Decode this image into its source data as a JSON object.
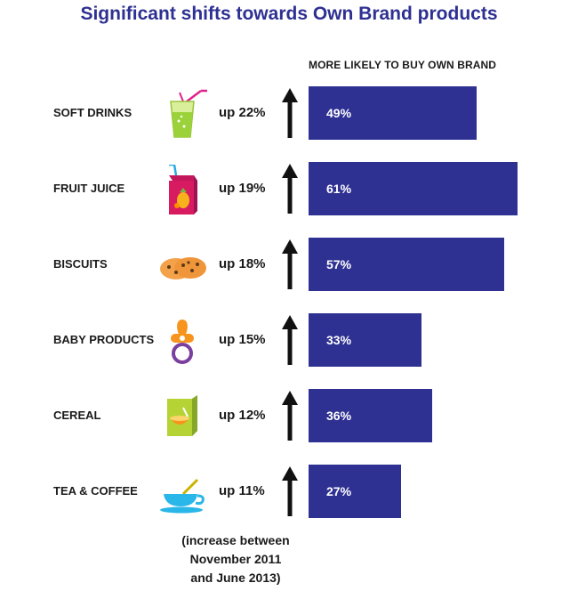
{
  "chart_data": {
    "type": "bar",
    "orientation": "horizontal",
    "title": "Significant shifts towards Own Brand products",
    "bars_header": "MORE LIKELY TO BUY OWN BRAND",
    "categories": [
      "SOFT DRINKS",
      "FRUIT JUICE",
      "BISCUITS",
      "BABY PRODUCTS",
      "CEREAL",
      "TEA & COFFEE"
    ],
    "values": [
      49,
      61,
      57,
      33,
      36,
      27
    ],
    "value_labels": [
      "49%",
      "61%",
      "57%",
      "33%",
      "36%",
      "27%"
    ],
    "changes": [
      "up 22%",
      "up 19%",
      "up 18%",
      "up 15%",
      "up 12%",
      "up 11%"
    ],
    "icons": [
      "soft-drink-icon",
      "fruit-juice-icon",
      "biscuits-icon",
      "baby-pacifier-icon",
      "cereal-box-icon",
      "tea-cup-icon"
    ],
    "xlim": [
      0,
      61
    ],
    "note": [
      "(increase between",
      "November 2011",
      "and June 2013)"
    ],
    "bar_color": "#2e3092"
  }
}
